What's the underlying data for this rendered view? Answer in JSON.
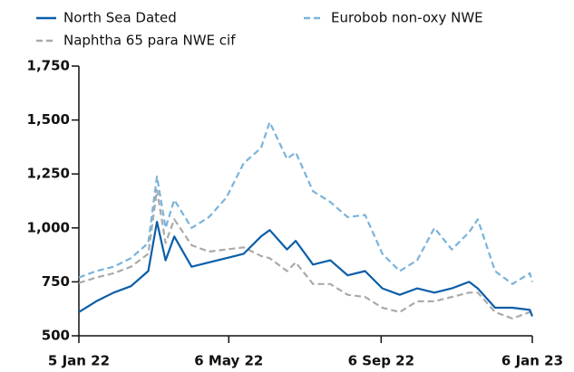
{
  "chart_data": {
    "type": "line",
    "x": [
      "2022-01-05",
      "2022-01-19",
      "2022-02-02",
      "2022-02-16",
      "2022-03-02",
      "2022-03-09",
      "2022-03-16",
      "2022-03-23",
      "2022-04-06",
      "2022-04-20",
      "2022-05-04",
      "2022-05-18",
      "2022-06-01",
      "2022-06-08",
      "2022-06-22",
      "2022-06-29",
      "2022-07-13",
      "2022-07-27",
      "2022-08-10",
      "2022-08-24",
      "2022-09-07",
      "2022-09-21",
      "2022-10-05",
      "2022-10-19",
      "2022-11-02",
      "2022-11-16",
      "2022-11-23",
      "2022-12-07",
      "2022-12-21",
      "2023-01-04",
      "2023-01-06"
    ],
    "series": [
      {
        "name": "North Sea Dated",
        "color": "#0b5ea8",
        "style": "solid",
        "values": [
          610,
          660,
          700,
          730,
          800,
          1028,
          850,
          960,
          820,
          840,
          860,
          880,
          960,
          990,
          900,
          940,
          830,
          850,
          780,
          800,
          720,
          690,
          720,
          700,
          720,
          750,
          720,
          630,
          630,
          620,
          590
        ]
      },
      {
        "name": "Eurobob non-oxy NWE",
        "color": "#7ab3dc",
        "style": "dashed",
        "values": [
          770,
          800,
          820,
          860,
          930,
          1238,
          1000,
          1130,
          1000,
          1050,
          1140,
          1300,
          1370,
          1490,
          1320,
          1350,
          1170,
          1120,
          1050,
          1060,
          880,
          800,
          850,
          1000,
          900,
          980,
          1040,
          800,
          740,
          790,
          750
        ]
      },
      {
        "name": "Naphtha 65 para NWE cif",
        "color": "#aaaaaa",
        "style": "dashed",
        "values": [
          745,
          770,
          790,
          820,
          880,
          1175,
          930,
          1040,
          920,
          890,
          900,
          910,
          870,
          860,
          800,
          840,
          740,
          740,
          690,
          680,
          630,
          610,
          660,
          660,
          680,
          700,
          700,
          610,
          580,
          610,
          620
        ]
      }
    ],
    "xlim": [
      "2022-01-05",
      "2023-01-06"
    ],
    "xticks": [
      {
        "value": "2022-01-05",
        "label": "5 Jan 22"
      },
      {
        "value": "2022-05-06",
        "label": "6 May 22"
      },
      {
        "value": "2022-09-06",
        "label": "6 Sep 22"
      },
      {
        "value": "2023-01-06",
        "label": "6 Jan 23"
      }
    ],
    "ylim": [
      500,
      1750
    ],
    "yticks": [
      500,
      750,
      {
        "value": 1000,
        "label": "1,000"
      },
      {
        "value": 1250,
        "label": "1,250"
      },
      {
        "value": 1500,
        "label": "1,500"
      },
      {
        "value": 1750,
        "label": "1,750"
      }
    ]
  }
}
